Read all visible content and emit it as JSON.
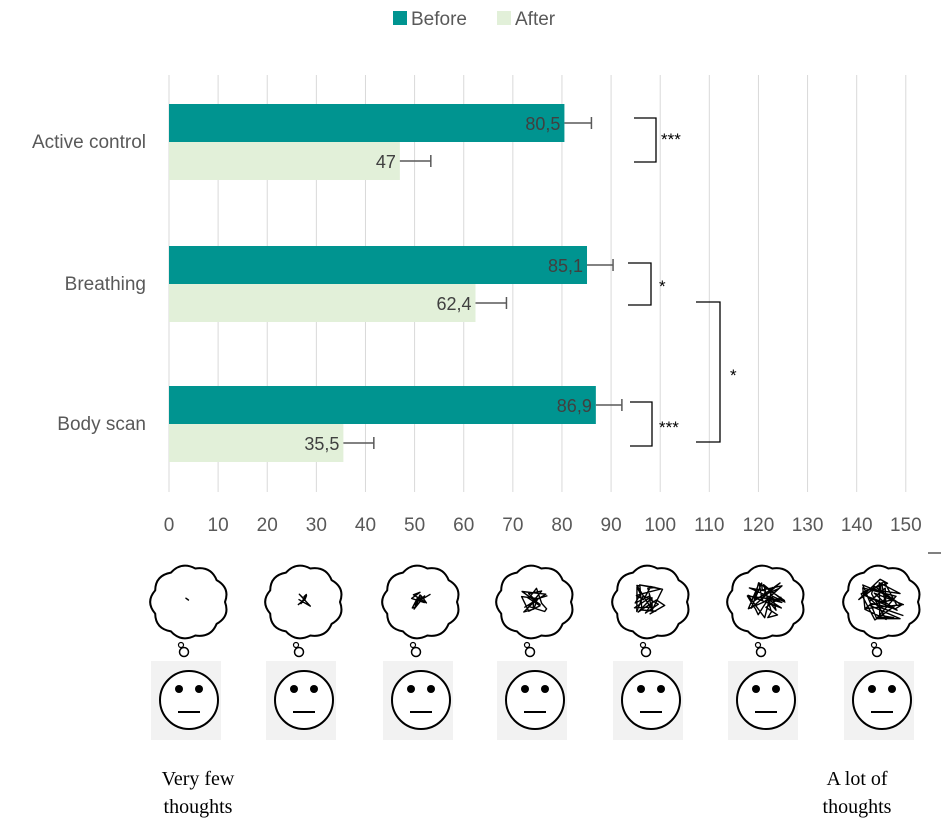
{
  "chart_data": {
    "type": "bar",
    "orientation": "horizontal",
    "categories": [
      "Active control",
      "Breathing",
      "Body scan"
    ],
    "series": [
      {
        "name": "Before",
        "color": "#009490",
        "values": [
          80.5,
          85.1,
          86.9
        ],
        "value_labels": [
          "80,5",
          "85,1",
          "86,9"
        ],
        "errors": [
          5.5,
          5.3,
          5.3
        ]
      },
      {
        "name": "After",
        "color": "#e2f0d9",
        "values": [
          47,
          62.4,
          35.5
        ],
        "value_labels": [
          "47",
          "62,4",
          "35,5"
        ],
        "errors": [
          6.3,
          6.3,
          6.2
        ]
      }
    ],
    "xlim": [
      0,
      150
    ],
    "xticks": [
      0,
      10,
      20,
      30,
      40,
      50,
      60,
      70,
      80,
      90,
      100,
      110,
      120,
      130,
      140,
      150
    ],
    "grid": true,
    "legend": "top-center",
    "significance": [
      {
        "between": "Before vs After",
        "category": "Active control",
        "label": "***"
      },
      {
        "between": "Before vs After",
        "category": "Breathing",
        "label": "*"
      },
      {
        "between": "Before vs After",
        "category": "Body scan",
        "label": "***"
      },
      {
        "between": "Breathing vs Body scan",
        "label": "*"
      }
    ]
  },
  "scale": {
    "icon_count": 7,
    "left_label": [
      "Very few",
      "thoughts"
    ],
    "right_label": [
      "A lot of",
      "thoughts"
    ]
  },
  "colors": {
    "before": "#009490",
    "after": "#e2f0d9",
    "grid": "#d9d9d9",
    "text": "#595959",
    "face_bg": "#f2f2f2"
  }
}
